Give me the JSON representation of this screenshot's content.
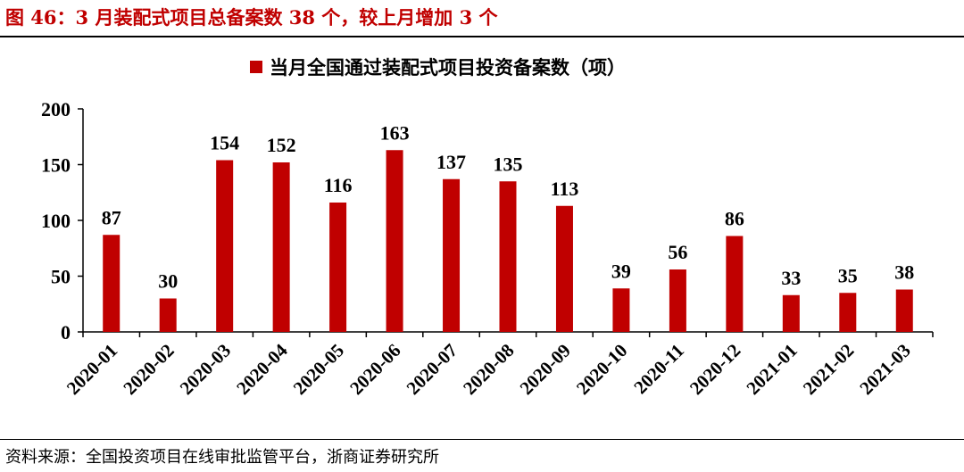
{
  "header": {
    "title": "图 46：3 月装配式项目总备案数 38 个，较上月增加 3 个"
  },
  "footer": {
    "source": "资料来源：全国投资项目在线审批监管平台，浙商证券研究所"
  },
  "colors": {
    "bar": "#c00000",
    "title": "#c00000",
    "axis": "#000000"
  },
  "chart_data": {
    "type": "bar",
    "categories": [
      "2020-01",
      "2020-02",
      "2020-03",
      "2020-04",
      "2020-05",
      "2020-06",
      "2020-07",
      "2020-08",
      "2020-09",
      "2020-10",
      "2020-11",
      "2020-12",
      "2021-01",
      "2021-02",
      "2021-03"
    ],
    "series": [
      {
        "name": "当月全国通过装配式项目投资备案数（项）",
        "values": [
          87,
          30,
          154,
          152,
          116,
          163,
          137,
          135,
          113,
          39,
          56,
          86,
          33,
          35,
          38
        ]
      }
    ],
    "ylim": [
      0,
      200
    ],
    "yticks": [
      0,
      50,
      100,
      150,
      200
    ],
    "legend_position": "top-center",
    "grid": false,
    "data_labels": true
  }
}
